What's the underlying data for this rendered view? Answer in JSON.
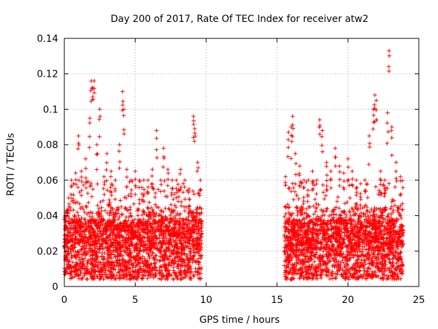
{
  "chart_data": {
    "type": "scatter",
    "title": "Day 200 of 2017, Rate Of TEC Index for receiver atw2",
    "xlabel": "GPS time / hours",
    "ylabel": "ROTI / TECUs",
    "xlim": [
      0,
      25
    ],
    "ylim": [
      0,
      0.14
    ],
    "xticks": [
      0,
      5,
      10,
      15,
      20,
      25
    ],
    "yticks": [
      0,
      0.02,
      0.04,
      0.06,
      0.08,
      0.1,
      0.12,
      0.14
    ],
    "grid": true,
    "legend": "none",
    "marker": "+",
    "color": "#ff0000",
    "data_segments": [
      {
        "x_start": 0.0,
        "x_end": 9.7
      },
      {
        "x_start": 15.5,
        "x_end": 23.9
      }
    ],
    "series": [
      {
        "x": [
          0.1,
          0.3,
          0.5,
          0.8,
          1.0,
          1.2,
          1.5,
          1.8,
          1.9,
          2.0,
          2.1,
          2.3,
          2.5,
          2.8,
          3.0,
          3.3,
          3.6,
          3.9,
          4.1,
          4.2,
          4.4,
          4.7,
          5.0,
          5.3,
          5.6,
          5.9,
          6.2,
          6.5,
          6.8,
          7.0,
          7.3,
          7.6,
          7.9,
          8.2,
          8.5,
          8.8,
          9.1,
          9.2,
          9.4,
          9.6,
          15.6,
          15.8,
          16.0,
          16.1,
          16.3,
          16.6,
          16.9,
          17.2,
          17.5,
          17.8,
          18.0,
          18.2,
          18.5,
          18.8,
          19.1,
          19.4,
          19.7,
          20.0,
          20.3,
          20.6,
          20.9,
          21.2,
          21.5,
          21.8,
          21.9,
          22.0,
          22.3,
          22.6,
          22.8,
          22.9,
          23.1,
          23.4,
          23.7
        ],
        "y": [
          0.042,
          0.05,
          0.06,
          0.064,
          0.085,
          0.065,
          0.072,
          0.095,
          0.116,
          0.112,
          0.116,
          0.08,
          0.1,
          0.062,
          0.075,
          0.065,
          0.06,
          0.08,
          0.11,
          0.1,
          0.066,
          0.06,
          0.065,
          0.06,
          0.06,
          0.06,
          0.066,
          0.088,
          0.06,
          0.078,
          0.066,
          0.06,
          0.06,
          0.066,
          0.06,
          0.055,
          0.096,
          0.089,
          0.07,
          0.06,
          0.062,
          0.087,
          0.09,
          0.096,
          0.075,
          0.068,
          0.06,
          0.06,
          0.065,
          0.06,
          0.094,
          0.088,
          0.07,
          0.065,
          0.078,
          0.068,
          0.064,
          0.072,
          0.065,
          0.06,
          0.058,
          0.06,
          0.085,
          0.1,
          0.108,
          0.105,
          0.065,
          0.06,
          0.098,
          0.133,
          0.09,
          0.07,
          0.062
        ]
      }
    ]
  }
}
